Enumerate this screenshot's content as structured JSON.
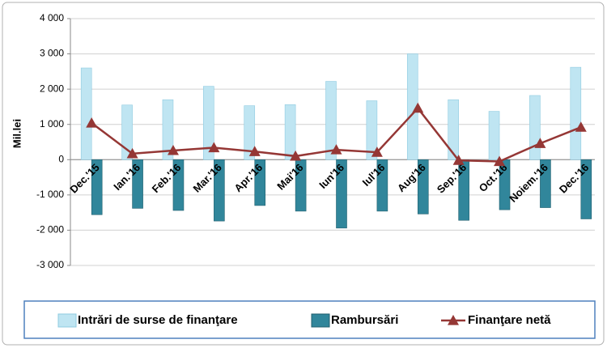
{
  "chart_data": {
    "type": "bar",
    "y_label": "Mil.lei",
    "categories": [
      "Dec.'15",
      "Ian.'16",
      "Feb.'16",
      "Mar.'16",
      "Apr.'16",
      "Mai'16",
      "Iun'16",
      "Iul'16",
      "Aug'16",
      "Sep.'16",
      "Oct.'16",
      "Noiem.'16",
      "Dec.'16"
    ],
    "series": [
      {
        "name": "Intrări de surse de finanţare",
        "type": "bar",
        "color": "#bfe5f2",
        "values": [
          2600,
          1550,
          1700,
          2080,
          1530,
          1560,
          2220,
          1670,
          3000,
          1700,
          1370,
          1820,
          2620
        ]
      },
      {
        "name": "Rambursări",
        "type": "bar",
        "color": "#31869b",
        "values": [
          -1560,
          -1380,
          -1440,
          -1740,
          -1300,
          -1460,
          -1940,
          -1460,
          -1540,
          -1720,
          -1420,
          -1360,
          -1680
        ]
      },
      {
        "name": "Finanţare netă",
        "type": "line",
        "color": "#953735",
        "values": [
          1040,
          170,
          260,
          340,
          230,
          100,
          280,
          210,
          1460,
          -20,
          -50,
          460,
          920
        ]
      }
    ],
    "ylim": [
      -3000,
      4000
    ],
    "yticks": [
      {
        "value": -3000,
        "label": "-3 000"
      },
      {
        "value": -2000,
        "label": "-2 000"
      },
      {
        "value": -1000,
        "label": "-1 000"
      },
      0,
      {
        "value": 1000,
        "label": "1 000"
      },
      {
        "value": 2000,
        "label": "2 000"
      },
      {
        "value": 3000,
        "label": "3 000"
      },
      {
        "value": 4000,
        "label": "4 000"
      }
    ],
    "grid": true
  }
}
